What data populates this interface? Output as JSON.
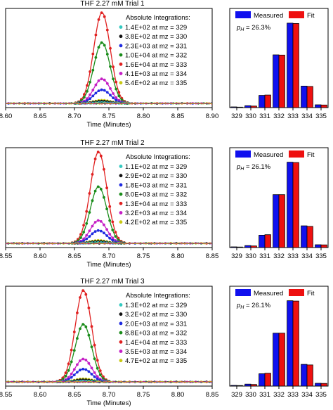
{
  "chart_data": [
    {
      "type": "line",
      "title": "THF 2.27 mM Trial 1",
      "xlabel": "Time (Minutes)",
      "ylabel": "",
      "xlim": [
        8.6,
        8.9
      ],
      "xticks": [
        "8.60",
        "8.65",
        "8.70",
        "8.75",
        "8.80",
        "8.85",
        "8.90"
      ],
      "peak_center": 8.74,
      "peak_width": 0.012,
      "legend_title": "Absolute Integrations:",
      "series": [
        {
          "name": "1.4E+02 at mz = 329",
          "color": "#33c9c0",
          "peak_height": 0.9
        },
        {
          "name": "3.8E+02 at mz = 330",
          "color": "#111111",
          "peak_height": 2.5
        },
        {
          "name": "2.3E+03 at mz = 331",
          "color": "#1f2be0",
          "peak_height": 15
        },
        {
          "name": "1.0E+04 at mz = 332",
          "color": "#1a8c1a",
          "peak_height": 67
        },
        {
          "name": "1.6E+04 at mz = 333",
          "color": "#e02020",
          "peak_height": 100
        },
        {
          "name": "4.1E+03 at mz = 334",
          "color": "#c51fc5",
          "peak_height": 27
        },
        {
          "name": "5.4E+02 at mz = 335",
          "color": "#c8c814",
          "peak_height": 3.5
        }
      ]
    },
    {
      "type": "bar",
      "annotation": "p_H = 26.3%",
      "legend": [
        "Measured",
        "Fit"
      ],
      "categories": [
        "329",
        "330",
        "331",
        "332",
        "333",
        "334",
        "335"
      ],
      "series": [
        {
          "name": "Measured",
          "color": "#1010ee",
          "values": [
            0.4,
            1.1,
            7.0,
            30.1,
            48.2,
            12.3,
            1.6
          ]
        },
        {
          "name": "Fit",
          "color": "#ee1010",
          "values": [
            0.3,
            0.9,
            7.2,
            30.0,
            48.0,
            12.1,
            1.5
          ]
        }
      ],
      "ylim": [
        0,
        55
      ]
    },
    {
      "type": "line",
      "title": "THF 2.27 mM Trial 2",
      "xlabel": "Time (Minutes)",
      "ylabel": "",
      "xlim": [
        8.55,
        8.85
      ],
      "xticks": [
        "8.55",
        "8.60",
        "8.65",
        "8.70",
        "8.75",
        "8.80",
        "8.85"
      ],
      "peak_center": 8.685,
      "peak_width": 0.012,
      "legend_title": "Absolute Integrations:",
      "series": [
        {
          "name": "1.1E+02 at mz = 329",
          "color": "#33c9c0",
          "peak_height": 0.9
        },
        {
          "name": "2.9E+02 at mz = 330",
          "color": "#111111",
          "peak_height": 2.2
        },
        {
          "name": "1.8E+03 at mz = 331",
          "color": "#1f2be0",
          "peak_height": 14
        },
        {
          "name": "8.0E+03 at mz = 332",
          "color": "#1a8c1a",
          "peak_height": 62
        },
        {
          "name": "1.3E+04 at mz = 333",
          "color": "#e02020",
          "peak_height": 100
        },
        {
          "name": "3.2E+03 at mz = 334",
          "color": "#c51fc5",
          "peak_height": 25
        },
        {
          "name": "4.2E+02 at mz = 335",
          "color": "#c8c814",
          "peak_height": 3.2
        }
      ]
    },
    {
      "type": "bar",
      "annotation": "p_H = 26.1%",
      "legend": [
        "Measured",
        "Fit"
      ],
      "categories": [
        "329",
        "330",
        "331",
        "332",
        "333",
        "334",
        "335"
      ],
      "series": [
        {
          "name": "Measured",
          "color": "#1010ee",
          "values": [
            0.4,
            1.1,
            7.0,
            30.0,
            48.4,
            12.3,
            1.6
          ]
        },
        {
          "name": "Fit",
          "color": "#ee1010",
          "values": [
            0.3,
            0.9,
            7.3,
            30.0,
            48.2,
            12.0,
            1.5
          ]
        }
      ],
      "ylim": [
        0,
        55
      ]
    },
    {
      "type": "line",
      "title": "THF 2.27 mM Trial 3",
      "xlabel": "Time (Minutes)",
      "ylabel": "",
      "xlim": [
        8.55,
        8.85
      ],
      "xticks": [
        "8.55",
        "8.60",
        "8.65",
        "8.70",
        "8.75",
        "8.80",
        "8.85"
      ],
      "peak_center": 8.663,
      "peak_width": 0.012,
      "legend_title": "Absolute Integrations:",
      "series": [
        {
          "name": "1.3E+02 at mz = 329",
          "color": "#33c9c0",
          "peak_height": 0.9
        },
        {
          "name": "3.2E+02 at mz = 330",
          "color": "#111111",
          "peak_height": 2.3
        },
        {
          "name": "2.0E+03 at mz = 331",
          "color": "#1f2be0",
          "peak_height": 14
        },
        {
          "name": "8.8E+03 at mz = 332",
          "color": "#1a8c1a",
          "peak_height": 63
        },
        {
          "name": "1.4E+04 at mz = 333",
          "color": "#e02020",
          "peak_height": 100
        },
        {
          "name": "3.5E+03 at mz = 334",
          "color": "#c51fc5",
          "peak_height": 25
        },
        {
          "name": "4.7E+02 at mz = 335",
          "color": "#c8c814",
          "peak_height": 3.4
        }
      ]
    },
    {
      "type": "bar",
      "annotation": "p_H = 26.1%",
      "legend": [
        "Measured",
        "Fit"
      ],
      "categories": [
        "329",
        "330",
        "331",
        "332",
        "333",
        "334",
        "335"
      ],
      "series": [
        {
          "name": "Measured",
          "color": "#1010ee",
          "values": [
            0.4,
            1.1,
            7.0,
            30.0,
            48.4,
            12.3,
            1.6
          ]
        },
        {
          "name": "Fit",
          "color": "#ee1010",
          "values": [
            0.3,
            0.9,
            7.3,
            30.0,
            48.2,
            12.0,
            1.5
          ]
        }
      ],
      "ylim": [
        0,
        55
      ]
    }
  ]
}
